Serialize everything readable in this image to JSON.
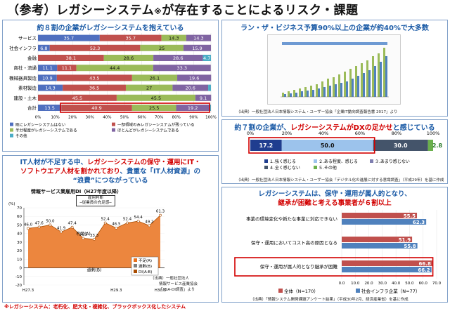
{
  "title": {
    "main": "（参考）レガシーシステム",
    "mark": "※",
    "rest": "が存在することによるリスク・課題"
  },
  "panel1": {
    "heading": "約８割の企業がレガシーシステムを抱えている",
    "rows": [
      "サービス",
      "社会インフラ",
      "金融",
      "商社・流通",
      "機械器具製造",
      "素材製造",
      "建設・土木",
      "合計"
    ],
    "legend": [
      "既にレガシーシステムはない",
      "一部領域のみレガシーシステムが残っている",
      "半分程度がレガシーシステムである",
      "ほとんどがレガシーシステムである",
      "その他"
    ],
    "axis_ticks": [
      "0%",
      "10%",
      "20%",
      "30%",
      "40%",
      "50%",
      "60%",
      "70%",
      "80%",
      "90%",
      "100%"
    ],
    "colors": [
      "#4f6fbf",
      "#c0504d",
      "#9bbb59",
      "#8064a2",
      "#4bacc6"
    ]
  },
  "panel2": {
    "heading": "ラン・ザ・ビジネス予算90%以上の企業が約40%で大多数",
    "source": "（出典）一般社団法人日本情報システム・ユーザー協会「企業IT動向調査報告書 2017」より"
  },
  "panel3": {
    "heading_a": "約７割の企業が、",
    "heading_red": "レガシーシステムがDXの足かせ",
    "heading_b": "と感じている",
    "ticks": [
      "0%",
      "20%",
      "40%",
      "60%",
      "80%",
      "100%"
    ],
    "legend": [
      "１.強く感じる",
      "２.ある程度、感じる",
      "３.あまり感じない",
      "４.全く感じない",
      "５.その他"
    ],
    "source": "（出典）一般社団法人日本情報システム・ユーザー協会「デジタル化の進展に対する意識調査」（平成29年）を基に作成",
    "colors": [
      "#1f3d8f",
      "#9cc3ec",
      "#7f7fb0",
      "#44546a",
      "#6ab04c"
    ]
  },
  "panel4": {
    "heading_l1_a": "IT人材が不足する中、",
    "heading_l1_red": "レガシーシステムの保守・運用にIT・",
    "heading_l2_red": "ソフトウエア人材を割かれており",
    "heading_l2_b": "、貴重な「IT人材資源」の",
    "heading_l3": "“浪費”につながっている",
    "chart_title": "情報サービス業雇用DI（H27年度以降）",
    "box_l1": "雇用判断",
    "box_l2": "─従業員の充足感─",
    "label_short": "不足(A)",
    "label_excess": "過剰(B)",
    "y_ticks": [
      "70",
      "60",
      "50",
      "40",
      "30",
      "20",
      "10",
      "0",
      "-10",
      "-20"
    ],
    "unit": "(%)",
    "x_ticks": [
      "H27.3",
      "H28.3",
      "H29.3",
      "H30.3"
    ],
    "legend": [
      "不足(A)",
      "過剰(B)",
      "DI(A-B)"
    ],
    "source_l1": "（出典）一般社団法人",
    "source_l2": "情報サービス産業協会",
    "source_l3": "「JISA-DI調査」より"
  },
  "panel5": {
    "heading_l1": "レガシーシステムは、保守・運用が属人的となり、",
    "heading_l2_red": "継承が困難と考える事業者が６割以上",
    "ticks": [
      "0.0",
      "10.0",
      "20.0",
      "30.0",
      "40.0",
      "50.0",
      "60.0",
      "70.0"
    ],
    "legend": [
      "全体（N=170）",
      "社会インフラ企業（N=77）"
    ],
    "source": "（出典）「情報システム開発課題アンケート結果」（平成30年2月、経済産業省）を基に作成",
    "colors": [
      "#c0504d",
      "#4f81bd"
    ]
  },
  "footer": "※レガシーシステム：老朽化、肥大化・複雑化、ブラックボックス化したシステム",
  "chart_data": [
    {
      "type": "bar",
      "stacked": true,
      "orientation": "horizontal",
      "categories": [
        "サービス",
        "社会インフラ",
        "金融",
        "商社・流通",
        "機械器具製造",
        "素材製造",
        "建設・土木",
        "合計"
      ],
      "series": [
        {
          "name": "既にレガシーシステムはない",
          "values": [
            35.7,
            6.8,
            0,
            11.1,
            10.9,
            14.3,
            0,
            13.5
          ]
        },
        {
          "name": "一部領域のみレガシーシステムが残っている",
          "values": [
            35.7,
            52.3,
            38.1,
            11.1,
            43.5,
            36.5,
            45.5,
            40.9
          ]
        },
        {
          "name": "半分程度がレガシーシステムである",
          "values": [
            14.3,
            25,
            28.6,
            44.4,
            26.1,
            27,
            45.5,
            25.5
          ]
        },
        {
          "name": "ほとんどがレガシーシステムである",
          "values": [
            14.3,
            15.9,
            28.6,
            33.3,
            19.6,
            20.6,
            9.1,
            19.2
          ]
        },
        {
          "name": "その他",
          "values": [
            0,
            0,
            4.7,
            0,
            0,
            1.6,
            0,
            0.9
          ]
        }
      ],
      "xlim": [
        0,
        100
      ]
    },
    {
      "type": "bar",
      "stacked": true,
      "orientation": "horizontal",
      "categories": [
        ""
      ],
      "series": [
        {
          "name": "１.強く感じる",
          "values": [
            17.2
          ]
        },
        {
          "name": "２.ある程度、感じる",
          "values": [
            50.0
          ]
        },
        {
          "name": "３.あまり感じない",
          "values": [
            0
          ]
        },
        {
          "name": "４.全く感じない",
          "values": [
            30.0
          ]
        },
        {
          "name": "５.その他",
          "values": [
            2.8
          ]
        }
      ],
      "xlim": [
        0,
        100
      ]
    },
    {
      "type": "area",
      "x": [
        "H27.3",
        "",
        "",
        "",
        "",
        "",
        "",
        "",
        "H29.3",
        "",
        "",
        "",
        "H30.3"
      ],
      "series": [
        {
          "name": "不足(A)",
          "values": [
            46.0,
            47.6,
            50.0,
            41.9,
            47.4,
            34.5,
            33.3,
            52.4,
            46.5,
            52.4,
            54.4,
            49.2,
            61.3
          ]
        }
      ],
      "ylim": [
        -20,
        70
      ]
    },
    {
      "type": "bar",
      "orientation": "horizontal",
      "categories": [
        "事業の環境変化や新たな事業に対応できない",
        "保守・運用においてコスト高の原因となる",
        "保守・運用が属人的となり継承が困難"
      ],
      "series": [
        {
          "name": "全体（N=170）",
          "values": [
            55.5,
            51.9,
            66.8
          ]
        },
        {
          "name": "社会インフラ企業（N=77）",
          "values": [
            62.3,
            55.8,
            66.2
          ]
        }
      ],
      "xlim": [
        0,
        70
      ]
    }
  ]
}
